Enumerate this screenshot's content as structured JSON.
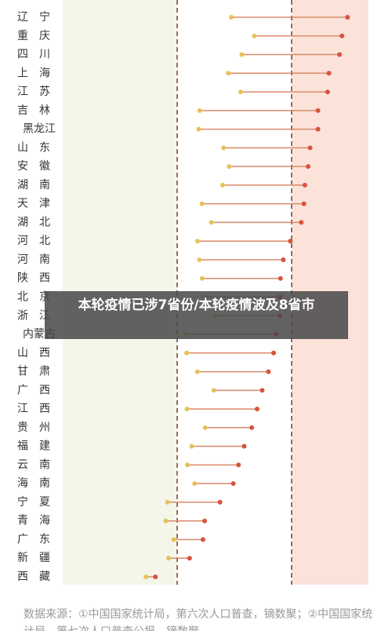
{
  "chart_data": {
    "type": "dumbbell",
    "categories": [
      "辽宁",
      "重庆",
      "四川",
      "上海",
      "江苏",
      "吉林",
      "黑龙江",
      "山东",
      "安徽",
      "湖南",
      "天津",
      "湖北",
      "河北",
      "河南",
      "陕西",
      "北京",
      "浙江",
      "内蒙古",
      "山西",
      "甘肃",
      "广西",
      "江西",
      "贵州",
      "福建",
      "云南",
      "海南",
      "宁夏",
      "青海",
      "广东",
      "新疆",
      "西藏"
    ],
    "series": [
      {
        "color": "#e8c15a",
        "values": [
          10.31,
          11.72,
          10.95,
          10.13,
          10.89,
          8.38,
          8.32,
          9.84,
          10.18,
          9.78,
          8.52,
          9.09,
          8.24,
          8.36,
          8.53,
          8.71,
          9.34,
          7.56,
          7.58,
          8.23,
          9.24,
          7.6,
          8.71,
          7.89,
          7.63,
          8.07,
          6.41,
          6.3,
          6.79,
          6.48,
          5.09
        ]
      },
      {
        "color": "#d9533d",
        "values": [
          17.42,
          17.08,
          16.93,
          16.28,
          16.2,
          15.61,
          15.61,
          15.13,
          15.01,
          14.81,
          14.75,
          14.59,
          13.92,
          13.49,
          13.32,
          13.3,
          13.27,
          13.05,
          12.9,
          12.58,
          12.2,
          11.89,
          11.56,
          11.1,
          10.75,
          10.43,
          9.62,
          8.68,
          8.58,
          7.76,
          5.67
        ]
      }
    ],
    "line_color": "#d98a6a",
    "xlim": [
      0,
      18.7
    ],
    "reference_lines": [
      7,
      14
    ],
    "bands": [
      {
        "from": 0,
        "to": 7,
        "color": "#f4f6ea"
      },
      {
        "from": 14,
        "to": 18.7,
        "color": "#fbe3da"
      }
    ],
    "caption": "本轮疫情已涉7省份/本轮疫情波及8省市",
    "source": "数据来源：①中国国家统计局，第六次人口普查，镝数聚；②中国国家统计局，第七次人口普查公报，镝数聚"
  }
}
